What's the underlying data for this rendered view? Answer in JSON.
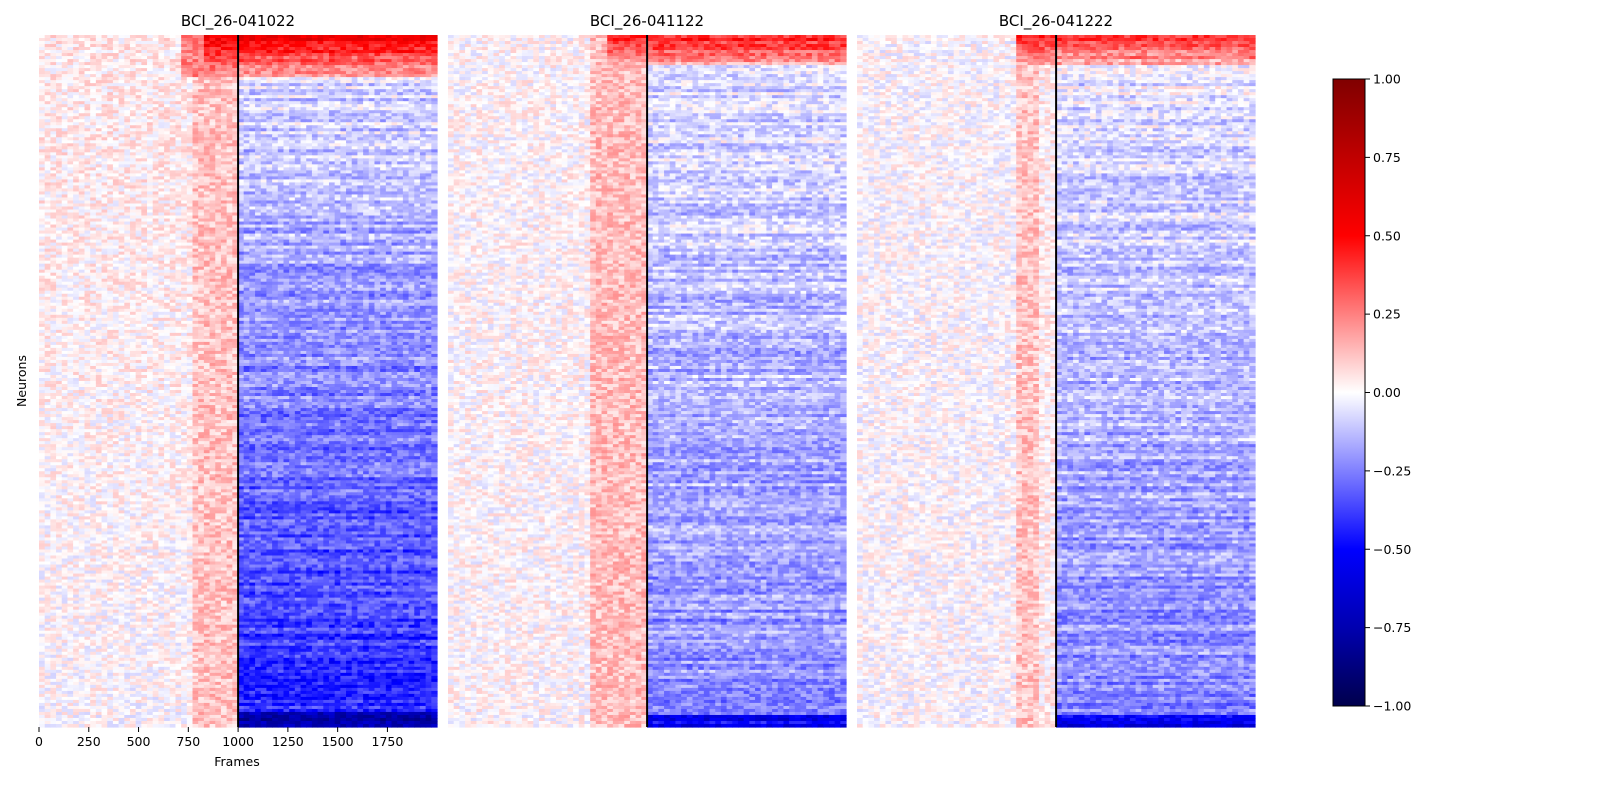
{
  "chart_data": {
    "type": "heatmap",
    "ylabel": "Neurons",
    "xlabel": "Frames",
    "x_range": [
      0,
      1999
    ],
    "event_frame": 1000,
    "x_ticks": [
      0,
      250,
      500,
      750,
      1000,
      1250,
      1500,
      1750
    ],
    "colormap": "seismic",
    "color_range": [
      -1.0,
      1.0
    ],
    "colorbar_ticks": [
      1.0,
      0.75,
      0.5,
      0.25,
      0.0,
      -0.25,
      -0.5,
      -0.75,
      -1.0
    ],
    "colorbar_tick_labels": [
      "1.00",
      "0.75",
      "0.50",
      "0.25",
      "0.00",
      "−0.25",
      "−0.50",
      "−0.75",
      "−1.00"
    ],
    "colors": {
      "positive": "#ff0000",
      "zero": "#ffffff",
      "negative": "#0000ff",
      "marker_line": "#000000"
    },
    "panels": [
      {
        "title": "BCI_26-041022",
        "show_x_axis": true,
        "show_y_label": true,
        "pattern": "weak positive activation before frame 1000, strong negative suppression after, increasing toward bottom rows; top rows strongly positive after frame 1000"
      },
      {
        "title": "BCI_26-041122",
        "show_x_axis": false,
        "show_y_label": false,
        "pattern": "positive band around frames 800-1000, moderate negative after frame 1000; top rows positive"
      },
      {
        "title": "BCI_26-041222",
        "show_x_axis": false,
        "show_y_label": false,
        "pattern": "positive band around frames 800-900, moderate negative after frame 1000; top rows positive"
      }
    ]
  }
}
